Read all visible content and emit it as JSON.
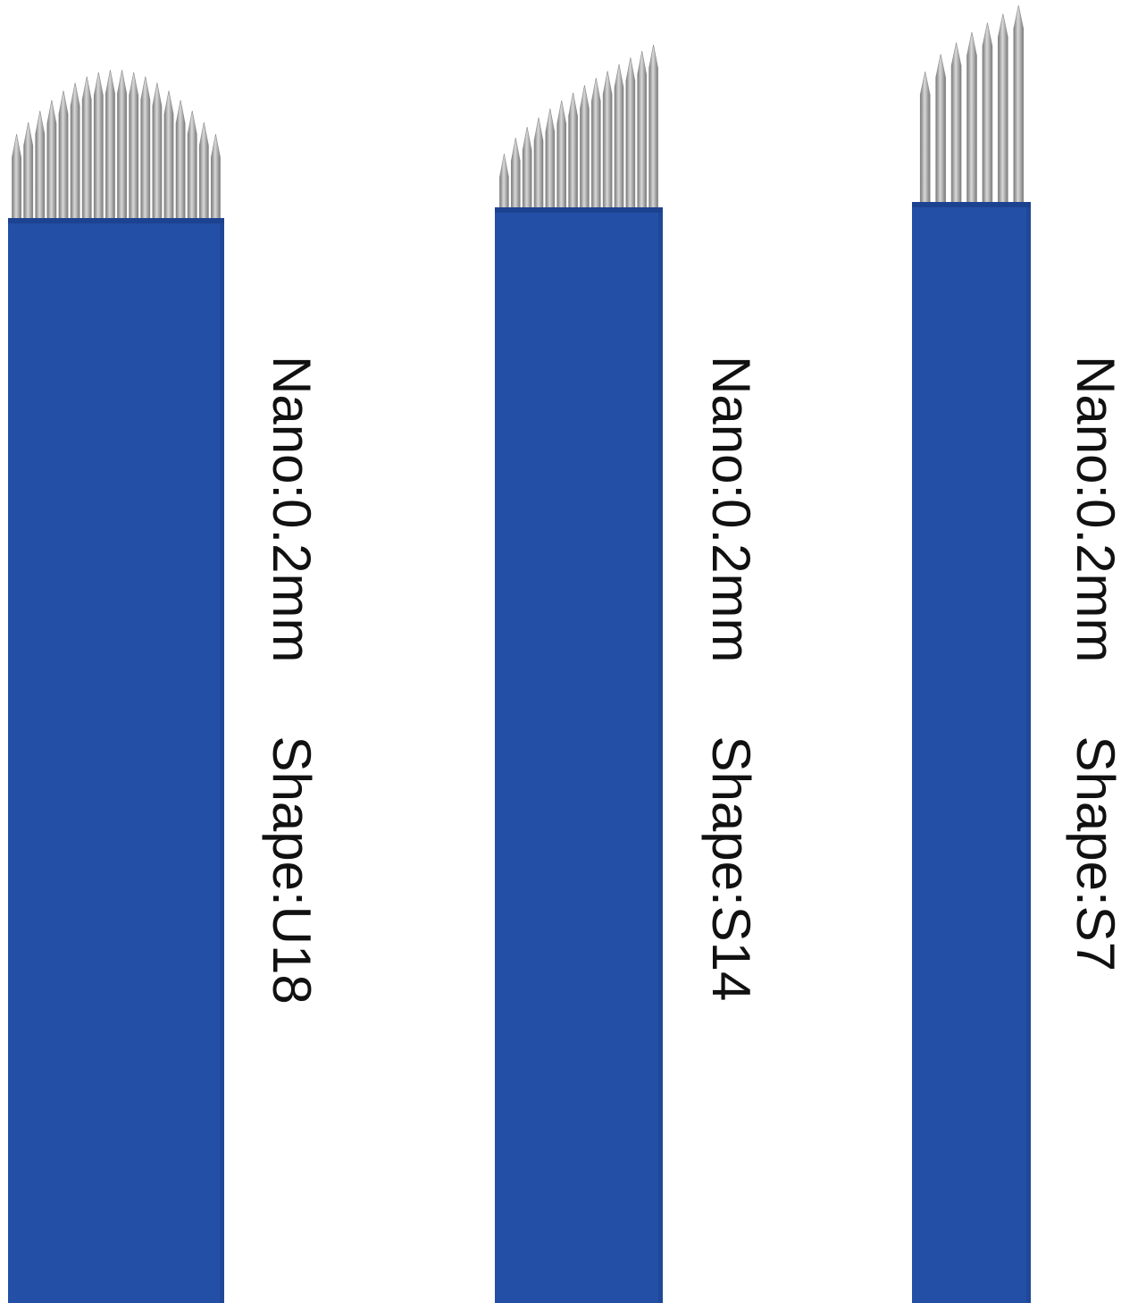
{
  "colors": {
    "background": "#ffffff",
    "blade_blue": "#2350a6",
    "blade_edge": "#1c4290",
    "needle_light": "#d8d8d8",
    "needle_dark": "#7a7a7a",
    "text": "#111111"
  },
  "blades": [
    {
      "nano": "Nano:0.2mm",
      "shape": "Shape:U18",
      "needle_count": 18,
      "tip_profile": "round"
    },
    {
      "nano": "Nano:0.2mm",
      "shape": "Shape:S14",
      "needle_count": 14,
      "tip_profile": "slanted"
    },
    {
      "nano": "Nano:0.2mm",
      "shape": "Shape:S7",
      "needle_count": 7,
      "tip_profile": "slanted"
    }
  ]
}
